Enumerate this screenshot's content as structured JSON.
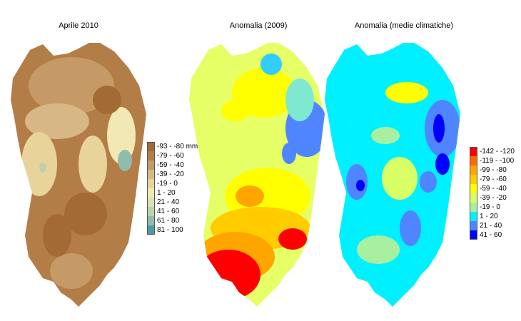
{
  "maps": [
    {
      "title": "Aprile 2010",
      "palette": [
        "#a36a36",
        "#b37d47",
        "#c59a66",
        "#d7b785",
        "#e8d49b",
        "#f2e8b4",
        "#d9e2b4",
        "#bcd3aa",
        "#8fbcac",
        "#4d9aa7"
      ],
      "legend": {
        "labels": [
          "-93 - -80 mm",
          "-79 - -60",
          "-59 - -40",
          "-39 - -20",
          "-19 - 0",
          "1 - 20",
          "21 - 40",
          "41 - 60",
          "61 - 80",
          "81 - 100"
        ],
        "colors": [
          "#a36a36",
          "#b37d47",
          "#c59a66",
          "#d7b785",
          "#e8d49b",
          "#f2e8b4",
          "#d9e2b4",
          "#bcd3aa",
          "#8fbcac",
          "#4d9aa7"
        ]
      }
    },
    {
      "title": "Anomalia (2009)",
      "palette": [
        "#ff0000",
        "#ff6a00",
        "#ffa500",
        "#ffcc00",
        "#ffff00",
        "#e6ff66",
        "#b0f5a0",
        "#7fe8d0",
        "#33ccff",
        "#4f86ff"
      ]
    },
    {
      "title": "Anomalia (medie climatiche)",
      "palette": [
        "#ff0000",
        "#ff6a00",
        "#ffa500",
        "#ffcc00",
        "#ffff00",
        "#d9ff66",
        "#a8f0a0",
        "#00f0ff",
        "#4f86ff",
        "#0000ff"
      ],
      "legend": {
        "labels": [
          "-142 - -120",
          "-119 - -100",
          "-99 - -80",
          "-79 - -60",
          "-59 - -40",
          "-39 - -20",
          "-19 - 0",
          "1 - 20",
          "21 - 40",
          "41 - 60"
        ],
        "colors": [
          "#ff0000",
          "#ff6a00",
          "#ffa500",
          "#ffcc00",
          "#ffff00",
          "#d9ff66",
          "#a8f0a0",
          "#00f0ff",
          "#4f86ff",
          "#0000ff"
        ]
      }
    }
  ]
}
